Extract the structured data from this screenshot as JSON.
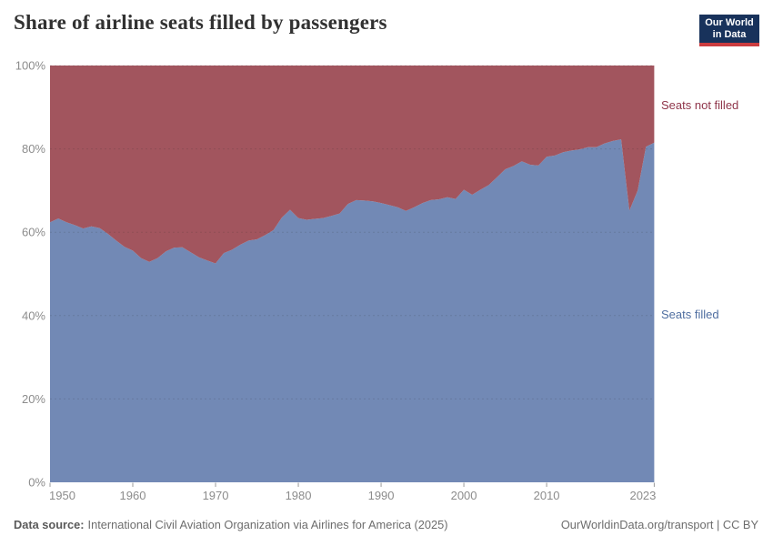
{
  "header": {
    "title": "Share of airline seats filled by passengers",
    "logo": {
      "line1": "Our World",
      "line2": "in Data",
      "bg_color": "#18325b",
      "strip_color": "#cb3c3f"
    }
  },
  "chart_data": {
    "type": "area",
    "stacked": true,
    "title": "Share of airline seats filled by passengers",
    "xlabel": "",
    "ylabel": "",
    "ylim": [
      0,
      100
    ],
    "grid": "horizontal-dashed",
    "legend_position": "right-edge-labels",
    "x": [
      1950,
      1951,
      1952,
      1953,
      1954,
      1955,
      1956,
      1957,
      1958,
      1959,
      1960,
      1961,
      1962,
      1963,
      1964,
      1965,
      1966,
      1967,
      1968,
      1969,
      1970,
      1971,
      1972,
      1973,
      1974,
      1975,
      1976,
      1977,
      1978,
      1979,
      1980,
      1981,
      1982,
      1983,
      1984,
      1985,
      1986,
      1987,
      1988,
      1989,
      1990,
      1991,
      1992,
      1993,
      1994,
      1995,
      1996,
      1997,
      1998,
      1999,
      2000,
      2001,
      2002,
      2003,
      2004,
      2005,
      2006,
      2007,
      2008,
      2009,
      2010,
      2011,
      2012,
      2013,
      2014,
      2015,
      2016,
      2017,
      2018,
      2019,
      2020,
      2021,
      2022,
      2023
    ],
    "series": [
      {
        "name": "Seats filled",
        "color": "#7289b5",
        "label_color": "#4f6ea0",
        "values": [
          62.4,
          63.3,
          62.4,
          61.7,
          60.9,
          61.4,
          61.0,
          59.6,
          58.0,
          56.5,
          55.6,
          53.8,
          52.9,
          53.8,
          55.4,
          56.3,
          56.4,
          55.2,
          54.0,
          53.2,
          52.5,
          55.0,
          55.8,
          57.0,
          58.0,
          58.3,
          59.3,
          60.5,
          63.5,
          65.4,
          63.4,
          63.0,
          63.2,
          63.4,
          63.9,
          64.5,
          66.8,
          67.7,
          67.6,
          67.4,
          67.0,
          66.5,
          66.0,
          65.1,
          66.0,
          67.0,
          67.7,
          67.9,
          68.4,
          68.0,
          70.2,
          69.0,
          70.2,
          71.3,
          73.2,
          75.1,
          75.9,
          77.0,
          76.2,
          76.0,
          78.1,
          78.4,
          79.2,
          79.6,
          79.9,
          80.4,
          80.4,
          81.3,
          81.9,
          82.3,
          65.2,
          70.0,
          80.5,
          81.5
        ]
      },
      {
        "name": "Seats not filled",
        "color": "#a2555e",
        "label_color": "#8f354a",
        "values": [
          37.6,
          36.7,
          37.6,
          38.3,
          39.1,
          38.6,
          39.0,
          40.4,
          42.0,
          43.5,
          44.4,
          46.2,
          47.1,
          46.2,
          44.6,
          43.7,
          43.6,
          44.8,
          46.0,
          46.8,
          47.5,
          45.0,
          44.2,
          43.0,
          42.0,
          41.7,
          40.7,
          39.5,
          36.5,
          34.6,
          36.6,
          37.0,
          36.8,
          36.6,
          36.1,
          35.5,
          33.2,
          32.3,
          32.4,
          32.6,
          33.0,
          33.5,
          34.0,
          34.9,
          34.0,
          33.0,
          32.3,
          32.1,
          31.6,
          32.0,
          29.8,
          31.0,
          29.8,
          28.7,
          26.8,
          24.9,
          24.1,
          23.0,
          23.8,
          24.0,
          21.9,
          21.6,
          20.8,
          20.4,
          20.1,
          19.6,
          19.6,
          18.7,
          18.1,
          17.7,
          34.8,
          30.0,
          19.5,
          18.5
        ]
      }
    ],
    "yticks": [
      {
        "value": 0,
        "label": "0%"
      },
      {
        "value": 20,
        "label": "20%"
      },
      {
        "value": 40,
        "label": "40%"
      },
      {
        "value": 60,
        "label": "60%"
      },
      {
        "value": 80,
        "label": "80%"
      },
      {
        "value": 100,
        "label": "100%"
      }
    ],
    "xticks": [
      {
        "value": 1950,
        "label": "1950"
      },
      {
        "value": 1960,
        "label": "1960"
      },
      {
        "value": 1970,
        "label": "1970"
      },
      {
        "value": 1980,
        "label": "1980"
      },
      {
        "value": 1990,
        "label": "1990"
      },
      {
        "value": 2000,
        "label": "2000"
      },
      {
        "value": 2010,
        "label": "2010"
      },
      {
        "value": 2023,
        "label": "2023"
      }
    ]
  },
  "footer": {
    "datasource_label": "Data source:",
    "datasource_text": "International Civil Aviation Organization via Airlines for America (2025)",
    "credit": "OurWorldinData.org/transport | CC BY"
  }
}
